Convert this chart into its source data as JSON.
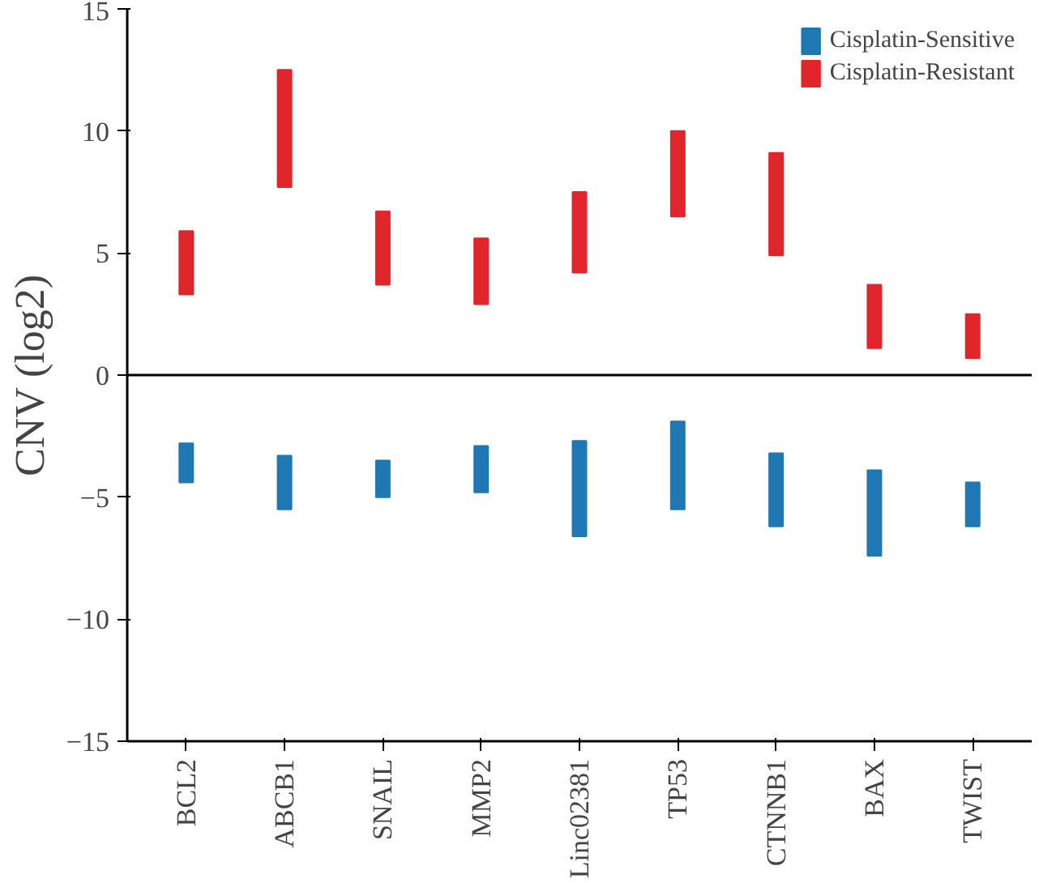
{
  "chart_data": {
    "type": "bar",
    "ylabel": "CNV (log2)",
    "categories": [
      "BCL2",
      "ABCB1",
      "SNAIL",
      "MMP2",
      "Linc02381",
      "TP53",
      "CTNNB1",
      "BAX",
      "TWIST"
    ],
    "series": [
      {
        "name": "Cisplatin-Sensitive",
        "color": "#1f77b4",
        "base": [
          -4.4,
          -5.5,
          -5.0,
          -4.8,
          -6.6,
          -5.5,
          -6.2,
          -7.4,
          -6.2
        ],
        "values": [
          1.6,
          2.2,
          1.5,
          1.9,
          3.9,
          3.6,
          3.0,
          3.5,
          1.8
        ]
      },
      {
        "name": "Cisplatin-Resistant",
        "color": "#e0262b",
        "base": [
          3.3,
          7.7,
          3.7,
          2.9,
          4.2,
          6.5,
          4.9,
          1.1,
          0.7
        ],
        "values": [
          2.6,
          4.8,
          3.0,
          2.7,
          3.3,
          3.5,
          4.2,
          2.6,
          1.8
        ]
      }
    ],
    "ylim": [
      -15,
      15
    ],
    "yticks": [
      -15,
      -10,
      -5,
      0,
      5,
      10,
      15
    ],
    "ref_lines": [
      {
        "axis": "y",
        "value": 0
      }
    ],
    "grid": false,
    "legend": "top right"
  }
}
